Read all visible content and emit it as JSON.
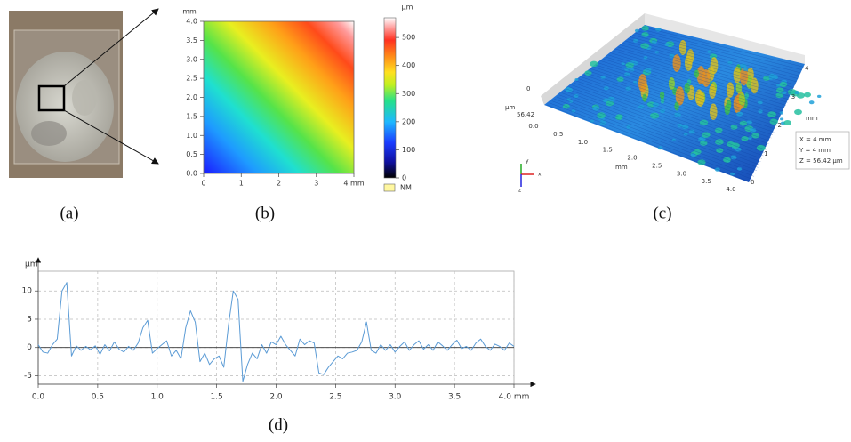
{
  "panels": {
    "a": "(a)",
    "b": "(b)",
    "c": "(c)",
    "d": "(d)"
  },
  "heightmap": {
    "unit": "mm",
    "xlim": [
      0,
      4
    ],
    "xticks": [
      0,
      1,
      2,
      3,
      {
        "value": 4,
        "label": "4 mm"
      }
    ],
    "ylim": [
      0,
      4
    ],
    "yticks": [
      {
        "value": 0,
        "label": "0.0"
      },
      {
        "value": 0.5,
        "label": "0.5"
      },
      {
        "value": 1,
        "label": "1.0"
      },
      {
        "value": 1.5,
        "label": "1.5"
      },
      {
        "value": 2,
        "label": "2.0"
      },
      {
        "value": 2.5,
        "label": "2.5"
      },
      {
        "value": 3,
        "label": "3.0"
      },
      {
        "value": 3.5,
        "label": "3.5"
      },
      {
        "value": 4,
        "label": "4.0"
      }
    ],
    "colorbar_unit": "µm",
    "colorbar_lim": [
      0,
      570
    ],
    "colorbar_ticks": [
      0,
      100,
      200,
      300,
      400,
      500
    ],
    "no_measure": "NM"
  },
  "surface": {
    "z_unit": "µm",
    "z_ticks": [
      "0",
      "56.42"
    ],
    "x_ticks": [
      "0.0",
      "0.5",
      "1.0",
      "1.5",
      "2.0",
      "2.5",
      "3.0",
      "3.5",
      "4.0"
    ],
    "x_unit": "mm",
    "y_ticks": [
      "0",
      "1",
      "2",
      "3",
      "4"
    ],
    "y_unit": "mm",
    "axes": [
      "y",
      "x",
      "z"
    ],
    "readout": [
      "X = 4 mm",
      "Y = 4 mm",
      "Z = 56.42 µm"
    ]
  },
  "chart_data": {
    "type": "line",
    "y_unit": "µm",
    "x": [
      0,
      0.04,
      0.08,
      0.12,
      0.16,
      0.2,
      0.24,
      0.28,
      0.32,
      0.36,
      0.4,
      0.44,
      0.48,
      0.52,
      0.56,
      0.6,
      0.64,
      0.68,
      0.72,
      0.76,
      0.8,
      0.84,
      0.88,
      0.92,
      0.96,
      1,
      1.04,
      1.08,
      1.12,
      1.16,
      1.2,
      1.24,
      1.28,
      1.32,
      1.36,
      1.4,
      1.44,
      1.48,
      1.52,
      1.56,
      1.6,
      1.64,
      1.68,
      1.72,
      1.76,
      1.8,
      1.84,
      1.88,
      1.92,
      1.96,
      2,
      2.04,
      2.08,
      2.12,
      2.16,
      2.2,
      2.24,
      2.28,
      2.32,
      2.36,
      2.4,
      2.44,
      2.48,
      2.52,
      2.56,
      2.6,
      2.64,
      2.68,
      2.72,
      2.76,
      2.8,
      2.84,
      2.88,
      2.92,
      2.96,
      3,
      3.04,
      3.08,
      3.12,
      3.16,
      3.2,
      3.24,
      3.28,
      3.32,
      3.36,
      3.4,
      3.44,
      3.48,
      3.52,
      3.56,
      3.6,
      3.64,
      3.68,
      3.72,
      3.76,
      3.8,
      3.84,
      3.88,
      3.92,
      3.96,
      4
    ],
    "series": [
      {
        "color": "#5b9bd5",
        "values": [
          0.5,
          -0.8,
          -1.0,
          0.5,
          1.5,
          10,
          11.5,
          -1.5,
          0.3,
          -0.5,
          0.2,
          -0.4,
          0.3,
          -1.2,
          0.5,
          -0.6,
          1.0,
          -0.3,
          -0.8,
          0.2,
          -0.5,
          0.8,
          3.5,
          4.8,
          -1.0,
          -0.2,
          0.5,
          1.2,
          -1.5,
          -0.5,
          -2.0,
          3.5,
          6.5,
          4.5,
          -2.5,
          -1.0,
          -3.0,
          -2.0,
          -1.5,
          -3.5,
          4.0,
          10.0,
          8.5,
          -6.0,
          -3.0,
          -1.0,
          -2.0,
          0.5,
          -1.0,
          1.0,
          0.5,
          2.0,
          0.5,
          -0.5,
          -1.5,
          1.5,
          0.5,
          1.2,
          0.8,
          -4.5,
          -4.8,
          -3.5,
          -2.5,
          -1.5,
          -2.0,
          -1.0,
          -0.8,
          -0.5,
          1.0,
          4.5,
          -0.5,
          -1.0,
          0.5,
          -0.5,
          0.5,
          -0.8,
          0.2,
          1.0,
          -0.5,
          0.5,
          1.2,
          -0.3,
          0.5,
          -0.5,
          1.0,
          0.3,
          -0.5,
          0.5,
          1.3,
          -0.2,
          0.2,
          -0.5,
          0.8,
          1.5,
          0.2,
          -0.5,
          0.6,
          0.2,
          -0.5,
          0.8,
          0.2
        ]
      }
    ],
    "xlim": [
      0,
      4
    ],
    "ylim": [
      -6.5,
      13.5
    ],
    "xticks": [
      {
        "value": 0,
        "label": "0.0"
      },
      {
        "value": 0.5,
        "label": "0.5"
      },
      {
        "value": 1,
        "label": "1.0"
      },
      {
        "value": 1.5,
        "label": "1.5"
      },
      {
        "value": 2,
        "label": "2.0"
      },
      {
        "value": 2.5,
        "label": "2.5"
      },
      {
        "value": 3,
        "label": "3.0"
      },
      {
        "value": 3.5,
        "label": "3.5"
      },
      {
        "value": 4,
        "label": "4.0 mm"
      }
    ],
    "yticks": [
      -5,
      0,
      5,
      10
    ],
    "grid": true
  }
}
